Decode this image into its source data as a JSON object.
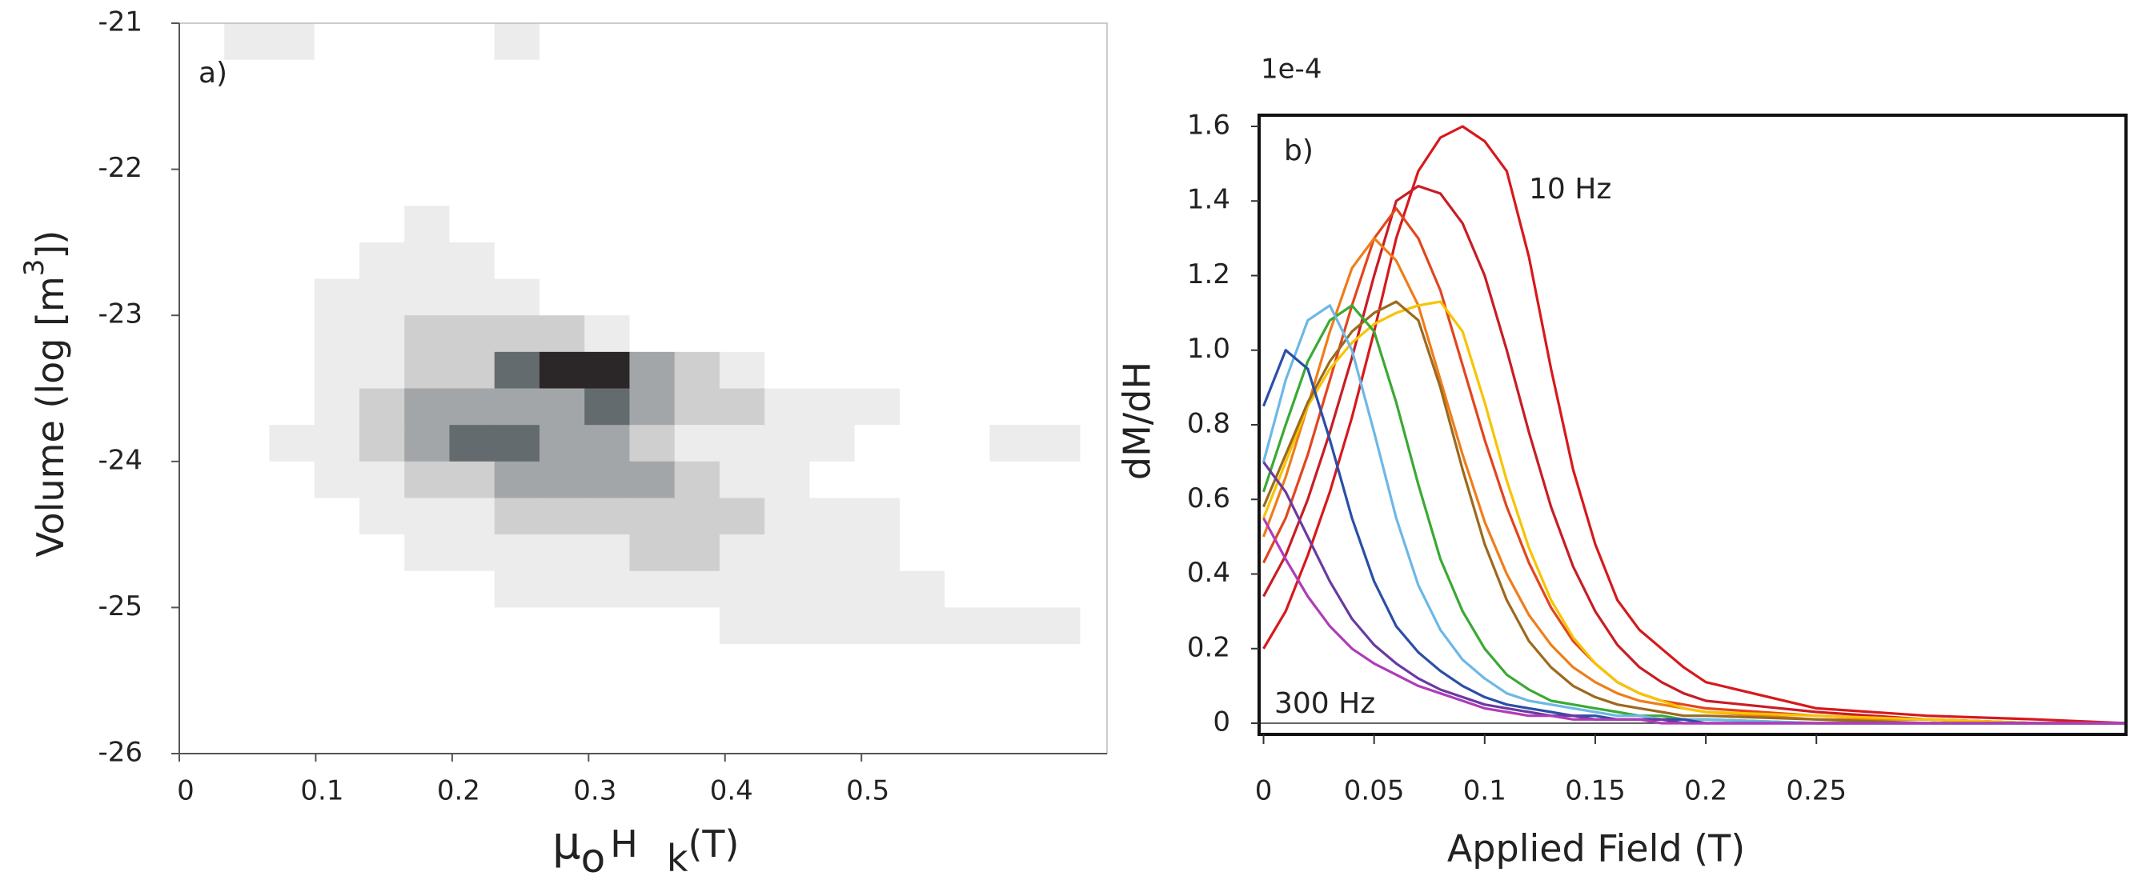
{
  "chart_data": [
    {
      "type": "heatmap",
      "annotation": "a)",
      "ylabel_parts": [
        "Volume (log [m",
        "3",
        "])"
      ],
      "xlabel_parts": [
        "μ",
        "o",
        "H",
        "k",
        "(T)"
      ],
      "xlim": [
        0,
        0.68
      ],
      "ylim": [
        -26,
        -21
      ],
      "xticks": [
        0,
        0.1,
        0.2,
        0.3,
        0.4,
        0.5
      ],
      "yticks": [
        -21,
        -22,
        -23,
        -24,
        -25,
        -26
      ],
      "colorscale": [
        "#ffffff",
        "#ececec",
        "#cfcfcf",
        "#a3a6a8",
        "#646b6e",
        "#2b2628"
      ],
      "xbins": [
        0,
        0.033,
        0.066,
        0.099,
        0.132,
        0.165,
        0.198,
        0.231,
        0.264,
        0.297,
        0.33,
        0.363,
        0.396,
        0.429,
        0.462,
        0.495,
        0.528,
        0.561,
        0.594,
        0.627,
        0.66
      ],
      "ybins": [
        -21,
        -21.25,
        -21.5,
        -21.75,
        -22,
        -22.25,
        -22.5,
        -22.75,
        -23,
        -23.25,
        -23.5,
        -23.75,
        -24,
        -24.25,
        -24.5,
        -24.75,
        -25,
        -25.25,
        -25.5,
        -25.75,
        -26
      ],
      "z": [
        [
          0,
          1,
          1,
          0,
          0,
          0,
          0,
          1,
          0,
          0,
          0,
          0,
          0,
          0,
          0,
          0,
          0,
          0,
          0,
          0
        ],
        [
          0,
          0,
          0,
          0,
          0,
          0,
          0,
          0,
          0,
          0,
          0,
          0,
          0,
          0,
          0,
          0,
          0,
          0,
          0,
          0
        ],
        [
          0,
          0,
          0,
          0,
          0,
          0,
          0,
          0,
          0,
          0,
          0,
          0,
          0,
          0,
          0,
          0,
          0,
          0,
          0,
          0
        ],
        [
          0,
          0,
          0,
          0,
          0,
          0,
          0,
          0,
          0,
          0,
          0,
          0,
          0,
          0,
          0,
          0,
          0,
          0,
          0,
          0
        ],
        [
          0,
          0,
          0,
          0,
          0,
          0,
          0,
          0,
          0,
          0,
          0,
          0,
          0,
          0,
          0,
          0,
          0,
          0,
          0,
          0
        ],
        [
          0,
          0,
          0,
          0,
          0,
          1,
          0,
          0,
          0,
          0,
          0,
          0,
          0,
          0,
          0,
          0,
          0,
          0,
          0,
          0
        ],
        [
          0,
          0,
          0,
          0,
          1,
          1,
          1,
          0,
          0,
          0,
          0,
          0,
          0,
          0,
          0,
          0,
          0,
          0,
          0,
          0
        ],
        [
          0,
          0,
          0,
          1,
          1,
          1,
          1,
          1,
          0,
          0,
          0,
          0,
          0,
          0,
          0,
          0,
          0,
          0,
          0,
          0
        ],
        [
          0,
          0,
          0,
          1,
          1,
          2,
          2,
          2,
          2,
          1,
          0,
          0,
          0,
          0,
          0,
          0,
          0,
          0,
          0,
          0
        ],
        [
          0,
          0,
          0,
          1,
          1,
          2,
          2,
          4,
          5,
          5,
          3,
          2,
          1,
          0,
          0,
          0,
          0,
          0,
          0,
          0
        ],
        [
          0,
          0,
          0,
          1,
          2,
          3,
          3,
          3,
          3,
          4,
          3,
          2,
          2,
          1,
          1,
          1,
          0,
          0,
          0,
          0
        ],
        [
          0,
          0,
          1,
          1,
          2,
          3,
          4,
          4,
          3,
          3,
          2,
          1,
          1,
          1,
          1,
          0,
          0,
          0,
          1,
          1
        ],
        [
          0,
          0,
          0,
          1,
          1,
          2,
          2,
          3,
          3,
          3,
          3,
          2,
          1,
          1,
          0,
          0,
          0,
          0,
          0,
          0
        ],
        [
          0,
          0,
          0,
          0,
          1,
          1,
          1,
          2,
          2,
          2,
          2,
          2,
          2,
          1,
          1,
          1,
          0,
          0,
          0,
          0
        ],
        [
          0,
          0,
          0,
          0,
          0,
          1,
          1,
          1,
          1,
          1,
          2,
          2,
          1,
          1,
          1,
          1,
          0,
          0,
          0,
          0
        ],
        [
          0,
          0,
          0,
          0,
          0,
          0,
          0,
          1,
          1,
          1,
          1,
          1,
          1,
          1,
          1,
          1,
          1,
          0,
          0,
          0
        ],
        [
          0,
          0,
          0,
          0,
          0,
          0,
          0,
          0,
          0,
          0,
          0,
          0,
          1,
          1,
          1,
          1,
          1,
          1,
          1,
          1
        ],
        [
          0,
          0,
          0,
          0,
          0,
          0,
          0,
          0,
          0,
          0,
          0,
          0,
          0,
          0,
          0,
          0,
          0,
          0,
          0,
          0
        ],
        [
          0,
          0,
          0,
          0,
          0,
          0,
          0,
          0,
          0,
          0,
          0,
          0,
          0,
          0,
          0,
          0,
          0,
          0,
          0,
          0
        ],
        [
          0,
          0,
          0,
          0,
          0,
          0,
          0,
          0,
          0,
          0,
          0,
          0,
          0,
          0,
          0,
          0,
          0,
          0,
          0,
          0
        ]
      ]
    },
    {
      "type": "line",
      "annotations": [
        "b)",
        "10 Hz",
        "300 Hz"
      ],
      "scale_note": "1e-4",
      "xlabel": "Applied Field (T)",
      "ylabel": "dM/dH",
      "xlim": [
        -0.002,
        0.39
      ],
      "ylim": [
        -0.03,
        1.63
      ],
      "xticks": [
        0,
        0.05,
        0.1,
        0.15,
        0.2,
        0.25
      ],
      "yticks": [
        0,
        0.2,
        0.4,
        0.6,
        0.8,
        {
          "value": 1,
          "label": "1.0"
        },
        1.2,
        1.4,
        1.6
      ],
      "x": [
        0,
        0.01,
        0.02,
        0.03,
        0.04,
        0.05,
        0.06,
        0.07,
        0.08,
        0.09,
        0.1,
        0.11,
        0.12,
        0.13,
        0.14,
        0.15,
        0.16,
        0.17,
        0.18,
        0.19,
        0.2,
        0.25,
        0.3,
        0.35,
        0.39
      ],
      "series": [
        {
          "color": "#d7191c",
          "values": [
            0.2,
            0.3,
            0.45,
            0.62,
            0.82,
            1.05,
            1.3,
            1.48,
            1.57,
            1.6,
            1.56,
            1.48,
            1.25,
            0.95,
            0.68,
            0.48,
            0.33,
            0.25,
            0.2,
            0.15,
            0.11,
            0.04,
            0.02,
            0.01,
            0
          ]
        },
        {
          "color": "#c81d25",
          "values": [
            0.34,
            0.45,
            0.6,
            0.78,
            0.98,
            1.2,
            1.4,
            1.44,
            1.42,
            1.34,
            1.2,
            1,
            0.78,
            0.58,
            0.42,
            0.3,
            0.21,
            0.15,
            0.11,
            0.08,
            0.06,
            0.03,
            0.01,
            0,
            0
          ]
        },
        {
          "color": "#e2461e",
          "values": [
            0.43,
            0.55,
            0.72,
            0.92,
            1.12,
            1.3,
            1.38,
            1.3,
            1.16,
            0.96,
            0.76,
            0.58,
            0.43,
            0.31,
            0.22,
            0.16,
            0.11,
            0.08,
            0.06,
            0.05,
            0.04,
            0.02,
            0.01,
            0,
            0
          ]
        },
        {
          "color": "#ef7d1a",
          "values": [
            0.5,
            0.66,
            0.85,
            1.05,
            1.22,
            1.3,
            1.24,
            1.12,
            0.92,
            0.72,
            0.54,
            0.4,
            0.29,
            0.21,
            0.15,
            0.11,
            0.08,
            0.06,
            0.05,
            0.04,
            0.03,
            0.01,
            0.01,
            0,
            0
          ]
        },
        {
          "color": "#f7c400",
          "values": [
            0.55,
            0.7,
            0.85,
            0.95,
            1.02,
            1.07,
            1.1,
            1.12,
            1.13,
            1.05,
            0.86,
            0.65,
            0.47,
            0.33,
            0.23,
            0.16,
            0.11,
            0.08,
            0.06,
            0.04,
            0.03,
            0.02,
            0.01,
            0,
            0
          ]
        },
        {
          "color": "#9b6a1e",
          "values": [
            0.58,
            0.72,
            0.86,
            0.97,
            1.05,
            1.1,
            1.13,
            1.08,
            0.9,
            0.68,
            0.48,
            0.33,
            0.22,
            0.15,
            0.1,
            0.07,
            0.05,
            0.04,
            0.03,
            0.02,
            0.02,
            0.01,
            0,
            0,
            0
          ]
        },
        {
          "color": "#3aa935",
          "values": [
            0.62,
            0.8,
            0.97,
            1.08,
            1.12,
            1.05,
            0.86,
            0.64,
            0.44,
            0.3,
            0.2,
            0.13,
            0.09,
            0.06,
            0.05,
            0.04,
            0.03,
            0.02,
            0.02,
            0.01,
            0.01,
            0,
            0,
            0,
            0
          ]
        },
        {
          "color": "#6cb8e6",
          "values": [
            0.7,
            0.92,
            1.08,
            1.12,
            1,
            0.78,
            0.55,
            0.37,
            0.25,
            0.17,
            0.12,
            0.08,
            0.06,
            0.05,
            0.04,
            0.03,
            0.02,
            0.02,
            0.01,
            0.01,
            0.01,
            0,
            0,
            0,
            0
          ]
        },
        {
          "color": "#2a4fa8",
          "values": [
            0.85,
            1,
            0.95,
            0.76,
            0.55,
            0.38,
            0.26,
            0.19,
            0.14,
            0.1,
            0.07,
            0.05,
            0.04,
            0.03,
            0.02,
            0.02,
            0.01,
            0.01,
            0.01,
            0.01,
            0,
            0,
            0,
            0,
            0
          ]
        },
        {
          "color": "#6a3aa0",
          "values": [
            0.7,
            0.62,
            0.5,
            0.38,
            0.28,
            0.21,
            0.16,
            0.12,
            0.09,
            0.07,
            0.05,
            0.04,
            0.03,
            0.02,
            0.02,
            0.01,
            0.01,
            0.01,
            0.01,
            0,
            0,
            0,
            0,
            0,
            0
          ]
        },
        {
          "color": "#b03cb8",
          "values": [
            0.55,
            0.44,
            0.34,
            0.26,
            0.2,
            0.16,
            0.13,
            0.1,
            0.08,
            0.06,
            0.04,
            0.03,
            0.02,
            0.02,
            0.01,
            0.01,
            0.01,
            0.01,
            0,
            0,
            0,
            0,
            0,
            0,
            0
          ]
        }
      ]
    }
  ]
}
